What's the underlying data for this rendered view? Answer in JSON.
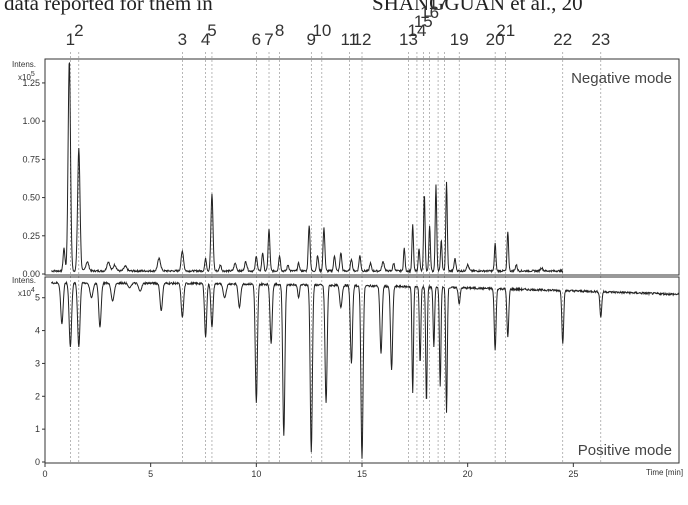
{
  "cropped_text": {
    "left": "data reported for them in",
    "right": "SHANGGUAN et al., 20"
  },
  "chart_data": {
    "type": "line",
    "x_axis": {
      "label": "Time [min]",
      "range": [
        0,
        30
      ],
      "ticks": [
        {
          "v": 0,
          "t": "0"
        },
        {
          "v": 5,
          "t": "5"
        },
        {
          "v": 10,
          "t": "10"
        },
        {
          "v": 15,
          "t": "15"
        },
        {
          "v": 20,
          "t": "20"
        },
        {
          "v": 25,
          "t": "25"
        }
      ]
    },
    "peak_labels": [
      {
        "t": "1",
        "x": 1.2
      },
      {
        "t": "2",
        "x": 1.6
      },
      {
        "t": "3",
        "x": 6.5
      },
      {
        "t": "4",
        "x": 7.6
      },
      {
        "t": "5",
        "x": 7.9
      },
      {
        "t": "6",
        "x": 10.0
      },
      {
        "t": "7",
        "x": 10.6
      },
      {
        "t": "8",
        "x": 11.1
      },
      {
        "t": "9",
        "x": 12.6
      },
      {
        "t": "10",
        "x": 13.1
      },
      {
        "t": "11",
        "x": 14.4
      },
      {
        "t": "12",
        "x": 15.0
      },
      {
        "t": "13",
        "x": 17.2
      },
      {
        "t": "14",
        "x": 17.6
      },
      {
        "t": "15",
        "x": 17.9
      },
      {
        "t": "16",
        "x": 18.2
      },
      {
        "t": "17",
        "x": 18.6
      },
      {
        "t": "18",
        "x": 18.9
      },
      {
        "t": "19",
        "x": 19.6
      },
      {
        "t": "20",
        "x": 21.3
      },
      {
        "t": "21",
        "x": 21.8
      },
      {
        "t": "22",
        "x": 24.5
      },
      {
        "t": "23",
        "x": 26.3
      }
    ],
    "panels": [
      {
        "name": "Negative mode",
        "ylabel": "Intens.",
        "yscale_label": "x10^5",
        "yscale_base": "x10",
        "yscale_exp": "5",
        "direction": "up",
        "ylim": [
          0,
          1.4
        ],
        "yticks": [
          {
            "v": 0.0,
            "t": "0.00"
          },
          {
            "v": 0.25,
            "t": "0.25"
          },
          {
            "v": 0.5,
            "t": "0.50"
          },
          {
            "v": 0.75,
            "t": "0.75"
          },
          {
            "v": 1.0,
            "t": "1.00"
          },
          {
            "v": 1.25,
            "t": "1.25"
          }
        ],
        "baseline": 0.02,
        "peaks": [
          [
            0.9,
            0.15,
            0.06
          ],
          [
            1.15,
            1.38,
            0.08
          ],
          [
            1.6,
            0.8,
            0.08
          ],
          [
            2.0,
            0.06,
            0.1
          ],
          [
            3.0,
            0.06,
            0.1
          ],
          [
            3.3,
            0.04,
            0.1
          ],
          [
            3.8,
            0.03,
            0.1
          ],
          [
            5.4,
            0.08,
            0.1
          ],
          [
            6.5,
            0.13,
            0.08
          ],
          [
            7.6,
            0.08,
            0.06
          ],
          [
            7.9,
            0.5,
            0.07
          ],
          [
            8.3,
            0.04,
            0.06
          ],
          [
            9.0,
            0.05,
            0.08
          ],
          [
            9.5,
            0.06,
            0.08
          ],
          [
            10.0,
            0.1,
            0.06
          ],
          [
            10.3,
            0.12,
            0.06
          ],
          [
            10.6,
            0.27,
            0.06
          ],
          [
            11.1,
            0.1,
            0.06
          ],
          [
            11.5,
            0.04,
            0.06
          ],
          [
            12.0,
            0.05,
            0.06
          ],
          [
            12.5,
            0.3,
            0.06
          ],
          [
            12.9,
            0.1,
            0.06
          ],
          [
            13.2,
            0.28,
            0.06
          ],
          [
            13.7,
            0.1,
            0.06
          ],
          [
            14.0,
            0.12,
            0.06
          ],
          [
            14.5,
            0.08,
            0.06
          ],
          [
            14.9,
            0.1,
            0.06
          ],
          [
            15.4,
            0.05,
            0.06
          ],
          [
            16.0,
            0.06,
            0.08
          ],
          [
            16.5,
            0.05,
            0.06
          ],
          [
            17.0,
            0.15,
            0.05
          ],
          [
            17.4,
            0.3,
            0.05
          ],
          [
            17.7,
            0.15,
            0.05
          ],
          [
            17.95,
            0.5,
            0.05
          ],
          [
            18.2,
            0.3,
            0.05
          ],
          [
            18.5,
            0.56,
            0.05
          ],
          [
            18.75,
            0.2,
            0.05
          ],
          [
            19.0,
            0.58,
            0.05
          ],
          [
            19.4,
            0.08,
            0.06
          ],
          [
            20.0,
            0.04,
            0.08
          ],
          [
            21.3,
            0.18,
            0.05
          ],
          [
            21.9,
            0.26,
            0.05
          ],
          [
            22.3,
            0.04,
            0.06
          ],
          [
            23.5,
            0.02,
            0.08
          ]
        ]
      },
      {
        "name": "Positive mode",
        "ylabel": "Intens.",
        "yscale_label": "x10^4",
        "yscale_base": "x10",
        "yscale_exp": "4",
        "direction": "down",
        "ylim": [
          0,
          5.6
        ],
        "yticks": [
          {
            "v": 0,
            "t": "0"
          },
          {
            "v": 1,
            "t": "1"
          },
          {
            "v": 2,
            "t": "2"
          },
          {
            "v": 3,
            "t": "3"
          },
          {
            "v": 4,
            "t": "4"
          },
          {
            "v": 5,
            "t": "5"
          }
        ],
        "baseline_start": 5.45,
        "baseline_end": 5.1,
        "dips": [
          [
            0.8,
            4.2,
            0.08
          ],
          [
            1.2,
            3.5,
            0.08
          ],
          [
            1.6,
            3.5,
            0.08
          ],
          [
            2.2,
            5.0,
            0.1
          ],
          [
            2.6,
            4.1,
            0.08
          ],
          [
            3.2,
            4.9,
            0.1
          ],
          [
            4.0,
            5.3,
            0.1
          ],
          [
            4.5,
            5.2,
            0.1
          ],
          [
            5.5,
            4.6,
            0.08
          ],
          [
            6.5,
            4.4,
            0.08
          ],
          [
            7.6,
            3.8,
            0.07
          ],
          [
            7.9,
            4.1,
            0.07
          ],
          [
            8.5,
            5.0,
            0.1
          ],
          [
            9.2,
            4.7,
            0.08
          ],
          [
            10.0,
            1.8,
            0.07
          ],
          [
            10.7,
            3.6,
            0.07
          ],
          [
            11.3,
            0.8,
            0.07
          ],
          [
            12.0,
            5.0,
            0.06
          ],
          [
            12.6,
            0.3,
            0.07
          ],
          [
            13.3,
            1.8,
            0.07
          ],
          [
            14.0,
            4.7,
            0.08
          ],
          [
            14.5,
            3.0,
            0.07
          ],
          [
            15.0,
            0.1,
            0.07
          ],
          [
            15.9,
            3.3,
            0.07
          ],
          [
            16.4,
            2.8,
            0.07
          ],
          [
            17.4,
            2.1,
            0.05
          ],
          [
            17.75,
            3.0,
            0.05
          ],
          [
            18.05,
            1.8,
            0.05
          ],
          [
            18.4,
            3.5,
            0.05
          ],
          [
            18.7,
            2.3,
            0.05
          ],
          [
            19.0,
            1.5,
            0.05
          ],
          [
            19.6,
            4.8,
            0.06
          ],
          [
            21.3,
            3.4,
            0.06
          ],
          [
            21.9,
            3.8,
            0.06
          ],
          [
            24.5,
            3.6,
            0.06
          ],
          [
            26.3,
            4.4,
            0.06
          ]
        ]
      }
    ]
  }
}
